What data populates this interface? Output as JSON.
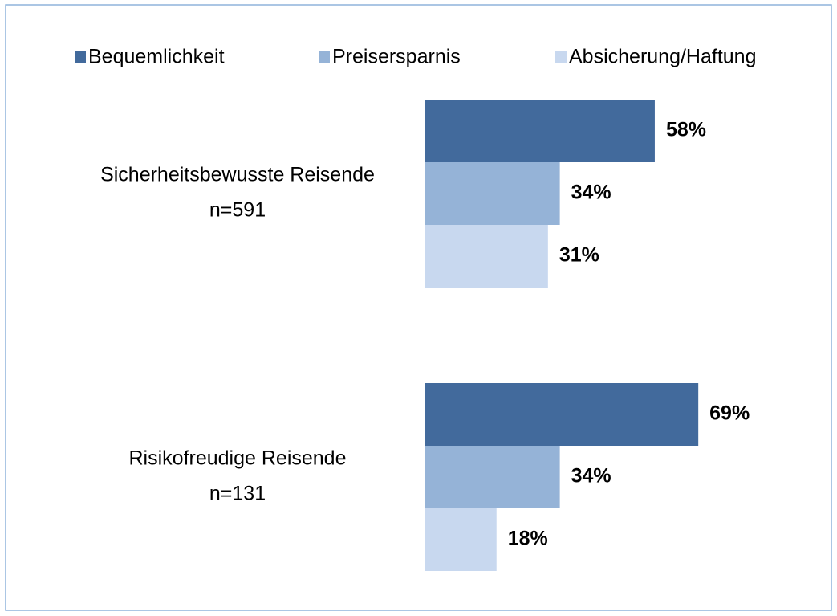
{
  "chart_data": {
    "type": "hbar",
    "categories": [
      [
        "Sicherheitsbewusste Reisende",
        "n=591"
      ],
      [
        "Risikofreudige Reisende",
        "n=131"
      ]
    ],
    "series": [
      {
        "name": "Bequemlichkeit",
        "color": "#426a9c",
        "values": [
          58,
          69
        ],
        "value_labels": [
          "58%",
          "69%"
        ]
      },
      {
        "name": "Preisersparnis",
        "color": "#95b3d7",
        "values": [
          34,
          34
        ],
        "value_labels": [
          "34%",
          "34%"
        ]
      },
      {
        "name": "Absicherung/Haftung",
        "color": "#c8d8ef",
        "values": [
          31,
          18
        ],
        "value_labels": [
          "31%",
          "18%"
        ]
      }
    ]
  }
}
